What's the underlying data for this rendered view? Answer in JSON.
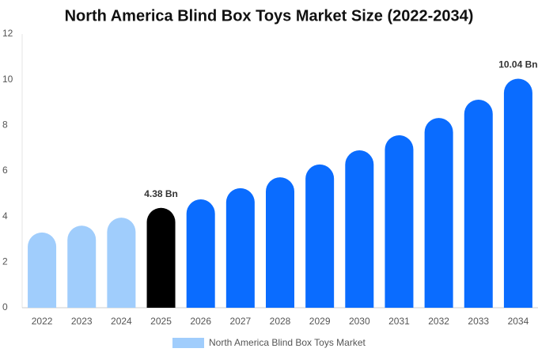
{
  "chart_data": {
    "type": "bar",
    "title": "North America Blind Box Toys Market Size (2022-2034)",
    "categories": [
      "2022",
      "2023",
      "2024",
      "2025",
      "2026",
      "2027",
      "2028",
      "2029",
      "2030",
      "2031",
      "2032",
      "2033",
      "2034"
    ],
    "series": [
      {
        "name": "North America Blind Box Toys Market",
        "color": "#a0cdfc",
        "values": [
          3.3,
          3.6,
          3.95,
          4.38,
          4.75,
          5.24,
          5.72,
          6.28,
          6.9,
          7.56,
          8.32,
          9.12,
          10.04
        ],
        "value_labels": [
          null,
          null,
          null,
          "4.38 Bn",
          null,
          null,
          null,
          null,
          null,
          null,
          null,
          null,
          "10.04 Bn"
        ],
        "colors": [
          "#a0cdfc",
          "#a0cdfc",
          "#a0cdfc",
          "#000000",
          "#0a6cff",
          "#0a6cff",
          "#0a6cff",
          "#0a6cff",
          "#0a6cff",
          "#0a6cff",
          "#0a6cff",
          "#0a6cff",
          "#0a6cff"
        ]
      }
    ],
    "ylim": [
      0,
      12
    ],
    "yticks": [
      0,
      2,
      4,
      6,
      8,
      10,
      12
    ],
    "grid": false
  }
}
